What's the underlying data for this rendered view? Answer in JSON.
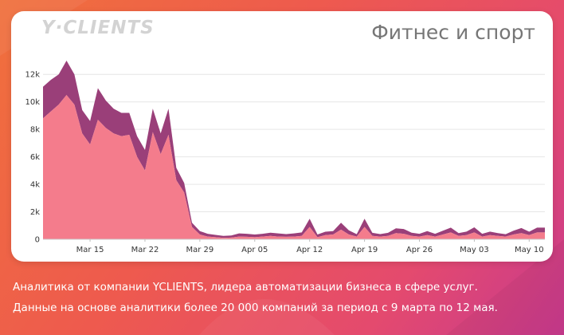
{
  "brand": {
    "logo_text": "Y·CLIENTS"
  },
  "card": {
    "title": "Фитнес и спорт"
  },
  "footer": {
    "line1": "Аналитика от компании YCLIENTS, лидера автоматизации бизнеса в сфере услуг.",
    "line2": "Данные на основе аналитики более 20 000 компаний за период с 9 марта по 12 мая."
  },
  "colors": {
    "background_start": "#f0703c",
    "background_end": "#c83a8e",
    "series_top": "#9a3f79",
    "series_bottom": "#f47c8c"
  },
  "chart_data": {
    "type": "area",
    "stacked": true,
    "title": "",
    "xlabel": "",
    "ylabel": "",
    "ylim": [
      0,
      13000
    ],
    "grid": true,
    "legend": "none",
    "x_tick_labels": [
      "Mar 15",
      "Mar 22",
      "Mar 29",
      "Apr 05",
      "Apr 12",
      "Apr 19",
      "Apr 26",
      "May 03",
      "May 10"
    ],
    "y_tick_labels": [
      "0",
      "2k",
      "4k",
      "6k",
      "8k",
      "10k",
      "12k"
    ],
    "y_tick_values": [
      0,
      2000,
      4000,
      6000,
      8000,
      10000,
      12000
    ],
    "x": [
      "2020-03-09",
      "2020-03-10",
      "2020-03-11",
      "2020-03-12",
      "2020-03-13",
      "2020-03-14",
      "2020-03-15",
      "2020-03-16",
      "2020-03-17",
      "2020-03-18",
      "2020-03-19",
      "2020-03-20",
      "2020-03-21",
      "2020-03-22",
      "2020-03-23",
      "2020-03-24",
      "2020-03-25",
      "2020-03-26",
      "2020-03-27",
      "2020-03-28",
      "2020-03-29",
      "2020-03-30",
      "2020-03-31",
      "2020-04-01",
      "2020-04-02",
      "2020-04-03",
      "2020-04-04",
      "2020-04-05",
      "2020-04-06",
      "2020-04-07",
      "2020-04-08",
      "2020-04-09",
      "2020-04-10",
      "2020-04-11",
      "2020-04-12",
      "2020-04-13",
      "2020-04-14",
      "2020-04-15",
      "2020-04-16",
      "2020-04-17",
      "2020-04-18",
      "2020-04-19",
      "2020-04-20",
      "2020-04-21",
      "2020-04-22",
      "2020-04-23",
      "2020-04-24",
      "2020-04-25",
      "2020-04-26",
      "2020-04-27",
      "2020-04-28",
      "2020-04-29",
      "2020-04-30",
      "2020-05-01",
      "2020-05-02",
      "2020-05-03",
      "2020-05-04",
      "2020-05-05",
      "2020-05-06",
      "2020-05-07",
      "2020-05-08",
      "2020-05-09",
      "2020-05-10",
      "2020-05-11",
      "2020-05-12"
    ],
    "series": [
      {
        "values": [
          8800,
          9300,
          9800,
          10500,
          9800,
          7700,
          6900,
          8700,
          8100,
          7700,
          7500,
          7600,
          6000,
          5000,
          7800,
          6200,
          7600,
          4300,
          3400,
          900,
          350,
          200,
          150,
          100,
          120,
          200,
          180,
          150,
          200,
          250,
          200,
          180,
          200,
          250,
          900,
          150,
          300,
          350,
          700,
          350,
          200,
          900,
          250,
          200,
          250,
          450,
          400,
          250,
          200,
          300,
          200,
          350,
          500,
          250,
          300,
          500,
          200,
          300,
          250,
          200,
          350,
          450,
          300,
          500,
          500
        ]
      },
      {
        "values": [
          2300,
          2300,
          2200,
          2500,
          2200,
          1700,
          1700,
          2300,
          2000,
          1800,
          1700,
          1600,
          1500,
          1500,
          1700,
          1500,
          1900,
          900,
          700,
          300,
          250,
          200,
          170,
          150,
          160,
          230,
          220,
          200,
          200,
          230,
          230,
          200,
          230,
          250,
          600,
          200,
          250,
          250,
          500,
          300,
          170,
          600,
          220,
          180,
          220,
          350,
          350,
          230,
          200,
          300,
          200,
          270,
          350,
          200,
          260,
          370,
          200,
          260,
          200,
          170,
          270,
          370,
          250,
          350,
          350
        ]
      }
    ]
  }
}
